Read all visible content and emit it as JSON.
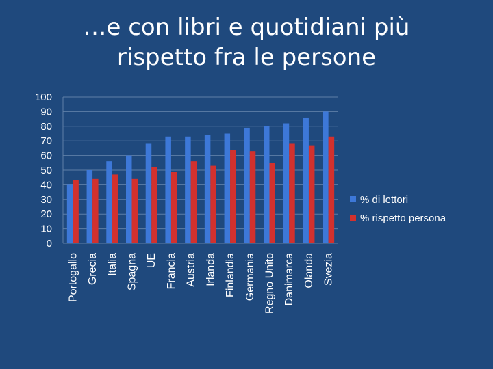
{
  "slide": {
    "title_line1": "…e con libri e quotidiani più",
    "title_line2": "rispetto fra le persone"
  },
  "chart_data": {
    "type": "bar",
    "categories": [
      "Portogallo",
      "Grecia",
      "Italia",
      "Spagna",
      "UE",
      "Francia",
      "Austria",
      "Irlanda",
      "Finlandia",
      "Germania",
      "Regno Unito",
      "Danimarca",
      "Olanda",
      "Svezia"
    ],
    "series": [
      {
        "name": "% di lettori",
        "color": "#3d78d8",
        "values": [
          40,
          50,
          56,
          60,
          68,
          73,
          73,
          74,
          75,
          79,
          80,
          82,
          86,
          90
        ]
      },
      {
        "name": "% rispetto persona",
        "color": "#d2312e",
        "values": [
          43,
          44,
          47,
          44,
          52,
          49,
          56,
          53,
          64,
          63,
          55,
          68,
          67,
          73
        ]
      }
    ],
    "ylim": [
      0,
      100
    ],
    "yticks": [
      0,
      10,
      20,
      30,
      40,
      50,
      60,
      70,
      80,
      90,
      100
    ],
    "grid": true,
    "legend": "right"
  }
}
